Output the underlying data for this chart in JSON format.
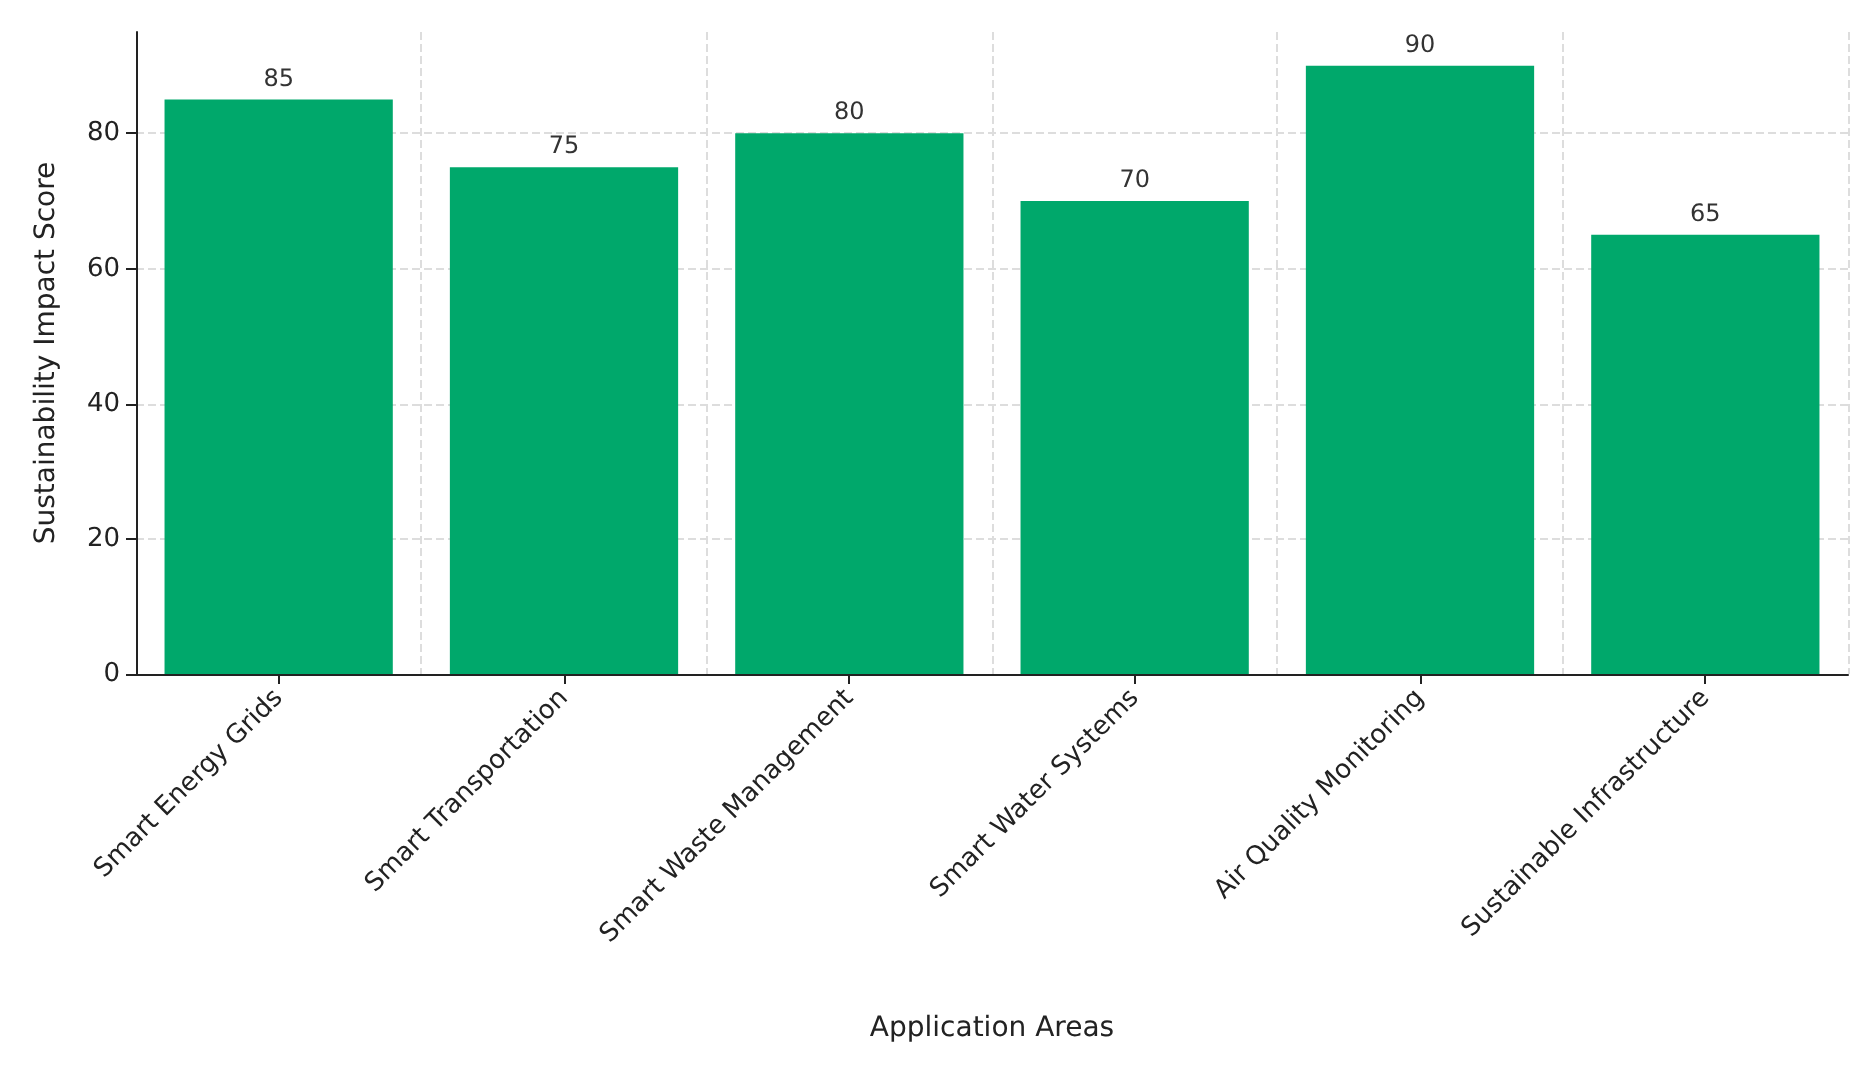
{
  "chart_data": {
    "type": "bar",
    "xlabel": "Application Areas",
    "ylabel": "Sustainability Impact Score",
    "categories": [
      "Smart Energy Grids",
      "Smart Transportation",
      "Smart Waste Management",
      "Smart Water Systems",
      "Air Quality Monitoring",
      "Sustainable Infrastructure"
    ],
    "values": [
      85,
      75,
      80,
      70,
      90,
      65
    ],
    "color": "#00a86b",
    "ylim": [
      0,
      95
    ],
    "yticks": [
      0,
      20,
      40,
      60,
      80
    ],
    "grid": true,
    "data_labels": true
  }
}
